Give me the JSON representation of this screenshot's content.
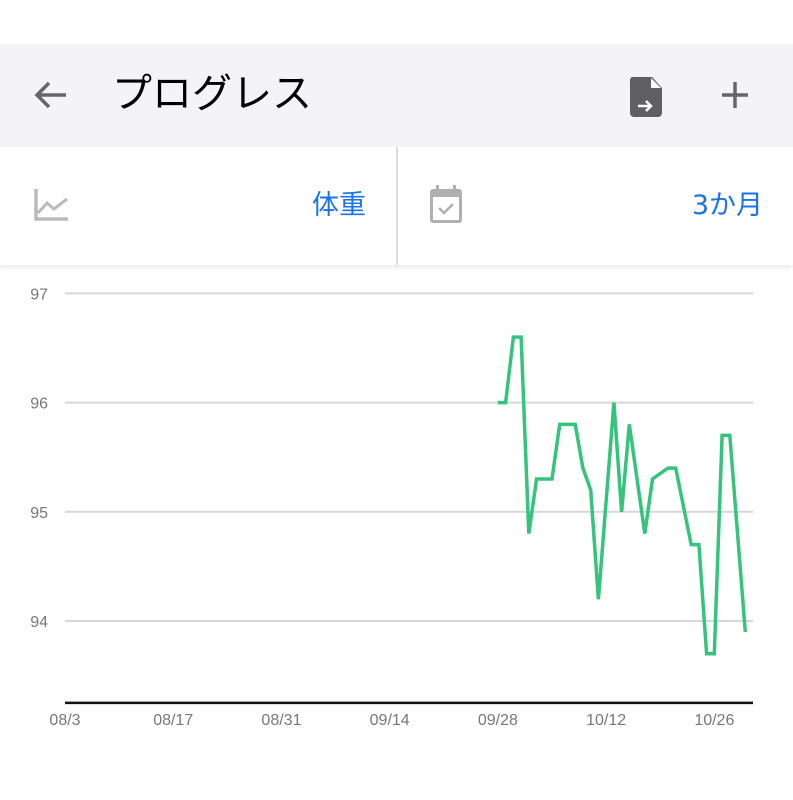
{
  "header": {
    "title": "プログレス",
    "back_icon": "arrow-left-icon",
    "export_icon": "file-export-icon",
    "add_icon": "plus-icon"
  },
  "selectors": {
    "metric": {
      "icon": "line-chart-icon",
      "value": "体重"
    },
    "period": {
      "icon": "calendar-check-icon",
      "value": "3か月"
    }
  },
  "chart_data": {
    "type": "line",
    "title": "",
    "xlabel": "",
    "ylabel": "",
    "x_range": [
      "08/03",
      "10/31"
    ],
    "ylim": [
      93.25,
      97
    ],
    "y_ticks": [
      94,
      95,
      96,
      97
    ],
    "x_ticks": [
      {
        "date": "08/03",
        "label": "08/3"
      },
      {
        "date": "08/17",
        "label": "08/17"
      },
      {
        "date": "08/31",
        "label": "08/31"
      },
      {
        "date": "09/14",
        "label": "09/14"
      },
      {
        "date": "09/28",
        "label": "09/28"
      },
      {
        "date": "10/12",
        "label": "10/12"
      },
      {
        "date": "10/26",
        "label": "10/26"
      }
    ],
    "grid": true,
    "line_color": "#34c47c",
    "series": [
      {
        "points": [
          [
            "09/28",
            96.0
          ],
          [
            "09/29",
            96.0
          ],
          [
            "09/30",
            96.6
          ],
          [
            "10/01",
            96.6
          ],
          [
            "10/02",
            94.8
          ],
          [
            "10/03",
            95.3
          ],
          [
            "10/04",
            95.3
          ],
          [
            "10/05",
            95.3
          ],
          [
            "10/06",
            95.8
          ],
          [
            "10/07",
            95.8
          ],
          [
            "10/08",
            95.8
          ],
          [
            "10/09",
            95.4
          ],
          [
            "10/10",
            95.2
          ],
          [
            "10/11",
            94.2
          ],
          [
            "10/13",
            96.0
          ],
          [
            "10/14",
            95.0
          ],
          [
            "10/15",
            95.8
          ],
          [
            "10/17",
            94.8
          ],
          [
            "10/18",
            95.3
          ],
          [
            "10/20",
            95.4
          ],
          [
            "10/21",
            95.4
          ],
          [
            "10/23",
            94.7
          ],
          [
            "10/24",
            94.7
          ],
          [
            "10/25",
            93.7
          ],
          [
            "10/26",
            93.7
          ],
          [
            "10/27",
            95.7
          ],
          [
            "10/28",
            95.7
          ],
          [
            "10/30",
            93.9
          ]
        ]
      }
    ]
  }
}
